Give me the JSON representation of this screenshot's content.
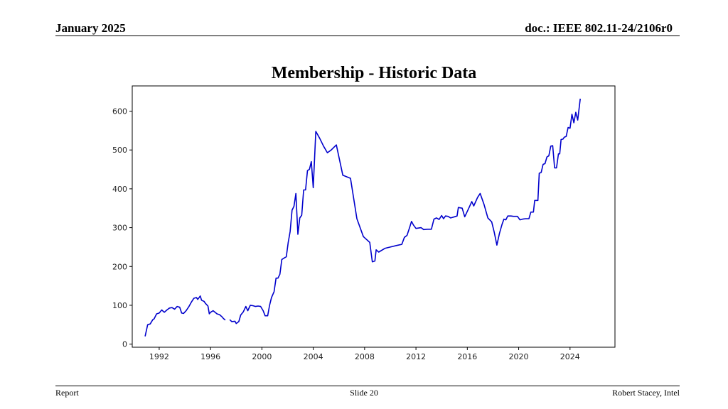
{
  "header": {
    "date": "January 2025",
    "doc": "doc.: IEEE 802.11-24/2106r0"
  },
  "footer": {
    "left": "Report",
    "center": "Slide 20",
    "right": "Robert Stacey, Intel"
  },
  "chart_data": {
    "type": "line",
    "title": "Membership - Historic Data",
    "xlabel": "",
    "ylabel": "",
    "xlim": [
      1989.9,
      2027.5
    ],
    "ylim": [
      -8,
      665
    ],
    "x_ticks": [
      1992,
      1996,
      2000,
      2004,
      2008,
      2012,
      2016,
      2020,
      2024
    ],
    "x_tick_labels": [
      "1992",
      "1996",
      "2000",
      "2004",
      "2008",
      "2012",
      "2016",
      "2020",
      "2024"
    ],
    "y_ticks": [
      0,
      100,
      200,
      300,
      400,
      500,
      600
    ],
    "y_tick_labels": [
      "0",
      "100",
      "200",
      "300",
      "400",
      "500",
      "600"
    ],
    "grid": false,
    "line_color": "#0000cc",
    "series": [
      {
        "segments": [
          [
            [
              1990.9,
              20
            ],
            [
              1991.1,
              50
            ],
            [
              1991.3,
              52
            ],
            [
              1991.5,
              63
            ],
            [
              1991.6,
              65
            ],
            [
              1991.8,
              78
            ],
            [
              1992.0,
              80
            ],
            [
              1992.2,
              88
            ],
            [
              1992.4,
              82
            ],
            [
              1992.6,
              88
            ],
            [
              1992.8,
              93
            ],
            [
              1993.0,
              94
            ],
            [
              1993.2,
              90
            ],
            [
              1993.4,
              97
            ],
            [
              1993.6,
              95
            ],
            [
              1993.75,
              80
            ],
            [
              1993.9,
              79
            ],
            [
              1994.1,
              86
            ],
            [
              1994.3,
              96
            ],
            [
              1994.5,
              108
            ],
            [
              1994.7,
              118
            ],
            [
              1994.9,
              120
            ],
            [
              1995.0,
              115
            ],
            [
              1995.2,
              124
            ],
            [
              1995.3,
              113
            ],
            [
              1995.5,
              110
            ],
            [
              1995.6,
              105
            ],
            [
              1995.8,
              98
            ],
            [
              1995.9,
              78
            ],
            [
              1996.0,
              82
            ],
            [
              1996.2,
              86
            ],
            [
              1996.35,
              82
            ],
            [
              1996.5,
              78
            ],
            [
              1996.7,
              76
            ],
            [
              1996.9,
              70
            ],
            [
              1997.0,
              66
            ],
            [
              1997.15,
              62
            ]
          ],
          [
            [
              1997.5,
              63
            ],
            [
              1997.65,
              58
            ],
            [
              1997.9,
              59
            ],
            [
              1998.0,
              53
            ],
            [
              1998.2,
              58
            ],
            [
              1998.35,
              75
            ],
            [
              1998.55,
              83
            ],
            [
              1998.75,
              97
            ],
            [
              1998.9,
              86
            ],
            [
              1999.1,
              100
            ],
            [
              1999.3,
              99
            ],
            [
              1999.5,
              97
            ],
            [
              1999.7,
              98
            ],
            [
              1999.9,
              97
            ],
            [
              2000.1,
              86
            ],
            [
              2000.25,
              73
            ],
            [
              2000.45,
              73
            ],
            [
              2000.6,
              100
            ],
            [
              2000.75,
              120
            ],
            [
              2000.95,
              135
            ],
            [
              2001.1,
              170
            ],
            [
              2001.25,
              170
            ],
            [
              2001.4,
              180
            ],
            [
              2001.55,
              218
            ],
            [
              2001.75,
              222
            ],
            [
              2001.9,
              225
            ],
            [
              2002.05,
              262
            ],
            [
              2002.2,
              290
            ],
            [
              2002.35,
              345
            ],
            [
              2002.5,
              355
            ],
            [
              2002.65,
              388
            ],
            [
              2002.8,
              283
            ],
            [
              2002.95,
              325
            ],
            [
              2003.1,
              332
            ],
            [
              2003.25,
              397
            ],
            [
              2003.4,
              397
            ],
            [
              2003.55,
              447
            ],
            [
              2003.7,
              450
            ],
            [
              2003.85,
              470
            ],
            [
              2004.0,
              403
            ],
            [
              2004.2,
              548
            ],
            [
              2004.5,
              530
            ],
            [
              2004.8,
              510
            ],
            [
              2005.1,
              493
            ],
            [
              2005.4,
              500
            ],
            [
              2005.8,
              513
            ],
            [
              2006.3,
              435
            ],
            [
              2006.9,
              427
            ],
            [
              2007.4,
              323
            ],
            [
              2007.9,
              277
            ],
            [
              2008.4,
              262
            ],
            [
              2008.6,
              212
            ],
            [
              2008.8,
              214
            ],
            [
              2008.9,
              243
            ],
            [
              2009.1,
              237
            ],
            [
              2009.6,
              247
            ],
            [
              2010.0,
              250
            ],
            [
              2010.5,
              254
            ],
            [
              2010.9,
              257
            ],
            [
              2011.1,
              275
            ],
            [
              2011.3,
              280
            ],
            [
              2011.5,
              300
            ],
            [
              2011.65,
              316
            ],
            [
              2011.8,
              307
            ],
            [
              2012.0,
              298
            ],
            [
              2012.4,
              300
            ],
            [
              2012.6,
              295
            ],
            [
              2012.9,
              296
            ],
            [
              2013.2,
              296
            ],
            [
              2013.4,
              322
            ],
            [
              2013.6,
              325
            ],
            [
              2013.8,
              321
            ],
            [
              2014.0,
              331
            ],
            [
              2014.15,
              323
            ],
            [
              2014.3,
              330
            ],
            [
              2014.5,
              329
            ],
            [
              2014.7,
              325
            ],
            [
              2015.0,
              328
            ],
            [
              2015.2,
              330
            ],
            [
              2015.3,
              352
            ],
            [
              2015.6,
              350
            ],
            [
              2015.8,
              328
            ],
            [
              2016.1,
              349
            ],
            [
              2016.35,
              367
            ],
            [
              2016.5,
              356
            ],
            [
              2016.8,
              378
            ],
            [
              2017.0,
              388
            ],
            [
              2017.3,
              360
            ],
            [
              2017.6,
              325
            ],
            [
              2017.9,
              315
            ],
            [
              2018.1,
              288
            ],
            [
              2018.3,
              255
            ],
            [
              2018.5,
              285
            ],
            [
              2018.7,
              308
            ],
            [
              2018.85,
              322
            ],
            [
              2019.0,
              320
            ],
            [
              2019.15,
              330
            ],
            [
              2019.4,
              330
            ],
            [
              2019.6,
              329
            ],
            [
              2019.9,
              329
            ],
            [
              2020.1,
              320
            ],
            [
              2020.3,
              322
            ],
            [
              2020.55,
              323
            ],
            [
              2020.8,
              323
            ],
            [
              2020.95,
              340
            ],
            [
              2021.15,
              340
            ],
            [
              2021.25,
              370
            ],
            [
              2021.5,
              370
            ],
            [
              2021.6,
              440
            ],
            [
              2021.75,
              442
            ],
            [
              2021.9,
              463
            ],
            [
              2022.05,
              465
            ],
            [
              2022.2,
              482
            ],
            [
              2022.35,
              485
            ],
            [
              2022.5,
              510
            ],
            [
              2022.65,
              511
            ],
            [
              2022.8,
              454
            ],
            [
              2022.95,
              454
            ],
            [
              2023.1,
              490
            ],
            [
              2023.2,
              490
            ],
            [
              2023.3,
              527
            ],
            [
              2023.45,
              528
            ],
            [
              2023.55,
              533
            ],
            [
              2023.7,
              535
            ],
            [
              2023.85,
              558
            ],
            [
              2024.0,
              556
            ],
            [
              2024.15,
              592
            ],
            [
              2024.3,
              570
            ],
            [
              2024.45,
              597
            ],
            [
              2024.6,
              577
            ],
            [
              2024.8,
              632
            ]
          ]
        ]
      }
    ]
  }
}
